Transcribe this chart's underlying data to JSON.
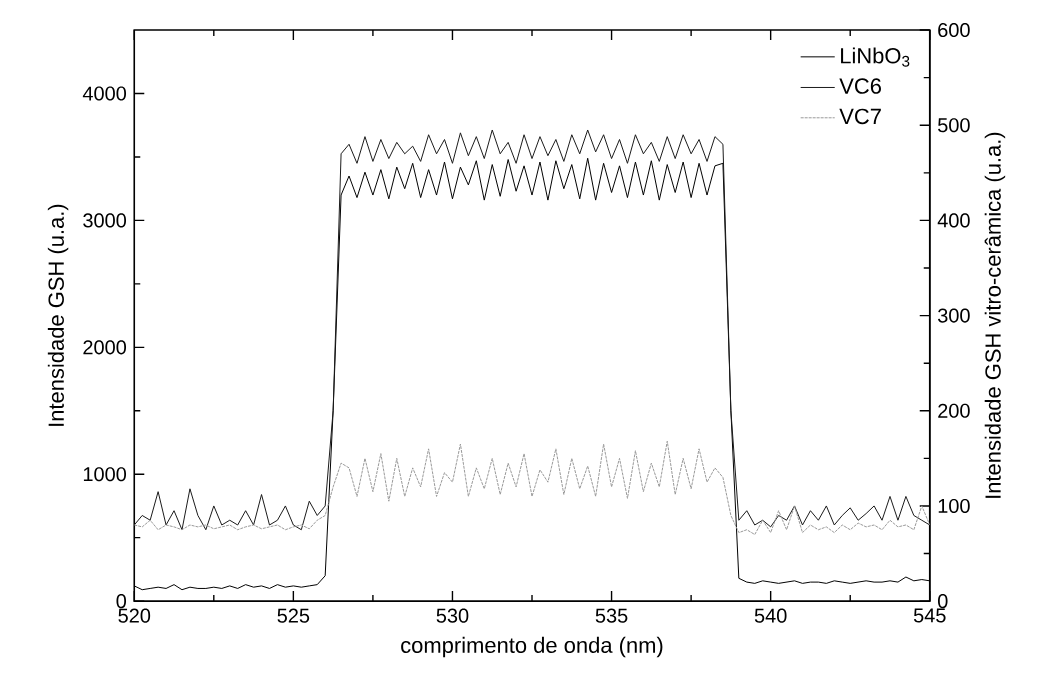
{
  "chart_data": {
    "type": "line",
    "xlabel": "comprimento de onda (nm)",
    "ylabel": "Intensidade GSH (u.a.)",
    "y2label": "Intensidade GSH vitro-cerâmica (u.a.)",
    "xlim": [
      520,
      545
    ],
    "xticks": [
      520,
      525,
      530,
      535,
      540,
      545
    ],
    "ylim": [
      0,
      4500
    ],
    "yticks": [
      0,
      1000,
      2000,
      3000,
      4000
    ],
    "y2lim": [
      0,
      600
    ],
    "y2ticks": [
      0,
      100,
      200,
      300,
      400,
      500,
      600
    ],
    "legend": "top right",
    "grid": false,
    "marker": "none",
    "x": [
      520,
      520.25,
      520.5,
      520.75,
      521,
      521.25,
      521.5,
      521.75,
      522,
      522.25,
      522.5,
      522.75,
      523,
      523.25,
      523.5,
      523.75,
      524,
      524.25,
      524.5,
      524.75,
      525,
      525.25,
      525.5,
      525.75,
      526,
      526.25,
      526.5,
      526.75,
      527,
      527.25,
      527.5,
      527.75,
      528,
      528.25,
      528.5,
      528.75,
      529,
      529.25,
      529.5,
      529.75,
      530,
      530.25,
      530.5,
      530.75,
      531,
      531.25,
      531.5,
      531.75,
      532,
      532.25,
      532.5,
      532.75,
      533,
      533.25,
      533.5,
      533.75,
      534,
      534.25,
      534.5,
      534.75,
      535,
      535.25,
      535.5,
      535.75,
      536,
      536.25,
      536.5,
      536.75,
      537,
      537.25,
      537.5,
      537.75,
      538,
      538.25,
      538.5,
      538.75,
      539,
      539.25,
      539.5,
      539.75,
      540,
      540.25,
      540.5,
      540.75,
      541,
      541.25,
      541.5,
      541.75,
      542,
      542.25,
      542.5,
      542.75,
      543,
      543.25,
      543.5,
      543.75,
      544,
      544.25,
      544.5,
      544.75,
      545
    ],
    "series": [
      {
        "name": "LiNbO$_{3}$",
        "color": "#000000",
        "line_style": "solid",
        "values": [
          120,
          90,
          100,
          110,
          100,
          130,
          90,
          110,
          100,
          100,
          110,
          100,
          120,
          100,
          130,
          110,
          120,
          100,
          130,
          110,
          120,
          110,
          120,
          130,
          200,
          1500,
          3200,
          3350,
          3180,
          3380,
          3200,
          3400,
          3170,
          3420,
          3250,
          3450,
          3180,
          3400,
          3200,
          3460,
          3170,
          3420,
          3280,
          3470,
          3160,
          3440,
          3190,
          3480,
          3230,
          3430,
          3200,
          3460,
          3160,
          3470,
          3250,
          3440,
          3170,
          3490,
          3160,
          3450,
          3220,
          3430,
          3180,
          3460,
          3200,
          3470,
          3160,
          3440,
          3220,
          3460,
          3180,
          3450,
          3200,
          3430,
          3450,
          1500,
          180,
          150,
          140,
          160,
          150,
          140,
          150,
          160,
          140,
          150,
          150,
          140,
          160,
          150,
          140,
          150,
          160,
          150,
          150,
          160,
          150,
          190,
          160,
          170,
          160
        ]
      },
      {
        "name": "VC6",
        "color": "#1a1a1a",
        "line_style": "solid",
        "axis": "y2",
        "values": [
          80,
          90,
          85,
          115,
          80,
          95,
          75,
          118,
          90,
          75,
          100,
          80,
          85,
          80,
          95,
          80,
          112,
          80,
          85,
          100,
          80,
          75,
          105,
          90,
          100,
          200,
          470,
          480,
          460,
          488,
          462,
          485,
          465,
          482,
          470,
          478,
          462,
          490,
          470,
          485,
          460,
          492,
          468,
          488,
          465,
          495,
          470,
          482,
          460,
          490,
          465,
          488,
          468,
          485,
          462,
          490,
          470,
          495,
          472,
          490,
          465,
          485,
          460,
          490,
          470,
          482,
          462,
          488,
          465,
          490,
          470,
          485,
          462,
          488,
          480,
          200,
          85,
          95,
          80,
          85,
          78,
          90,
          85,
          100,
          80,
          95,
          85,
          100,
          80,
          90,
          98,
          85,
          92,
          100,
          85,
          110,
          85,
          110,
          90,
          85,
          80
        ]
      },
      {
        "name": "VC7",
        "color": "#999999",
        "line_style": "dotted",
        "axis": "y2",
        "values": [
          80,
          78,
          85,
          75,
          80,
          78,
          75,
          80,
          78,
          80,
          76,
          78,
          80,
          75,
          78,
          80,
          76,
          78,
          80,
          75,
          78,
          80,
          76,
          85,
          90,
          120,
          145,
          140,
          110,
          150,
          115,
          155,
          105,
          150,
          110,
          140,
          120,
          160,
          110,
          135,
          125,
          165,
          110,
          140,
          118,
          150,
          112,
          145,
          120,
          155,
          110,
          138,
          125,
          160,
          112,
          150,
          118,
          142,
          110,
          165,
          120,
          150,
          108,
          158,
          115,
          145,
          120,
          168,
          112,
          150,
          118,
          160,
          125,
          140,
          130,
          90,
          72,
          75,
          70,
          85,
          72,
          95,
          75,
          100,
          72,
          80,
          75,
          78,
          72,
          80,
          75,
          82,
          78,
          80,
          75,
          85,
          78,
          80,
          75,
          100,
          80
        ]
      }
    ]
  }
}
